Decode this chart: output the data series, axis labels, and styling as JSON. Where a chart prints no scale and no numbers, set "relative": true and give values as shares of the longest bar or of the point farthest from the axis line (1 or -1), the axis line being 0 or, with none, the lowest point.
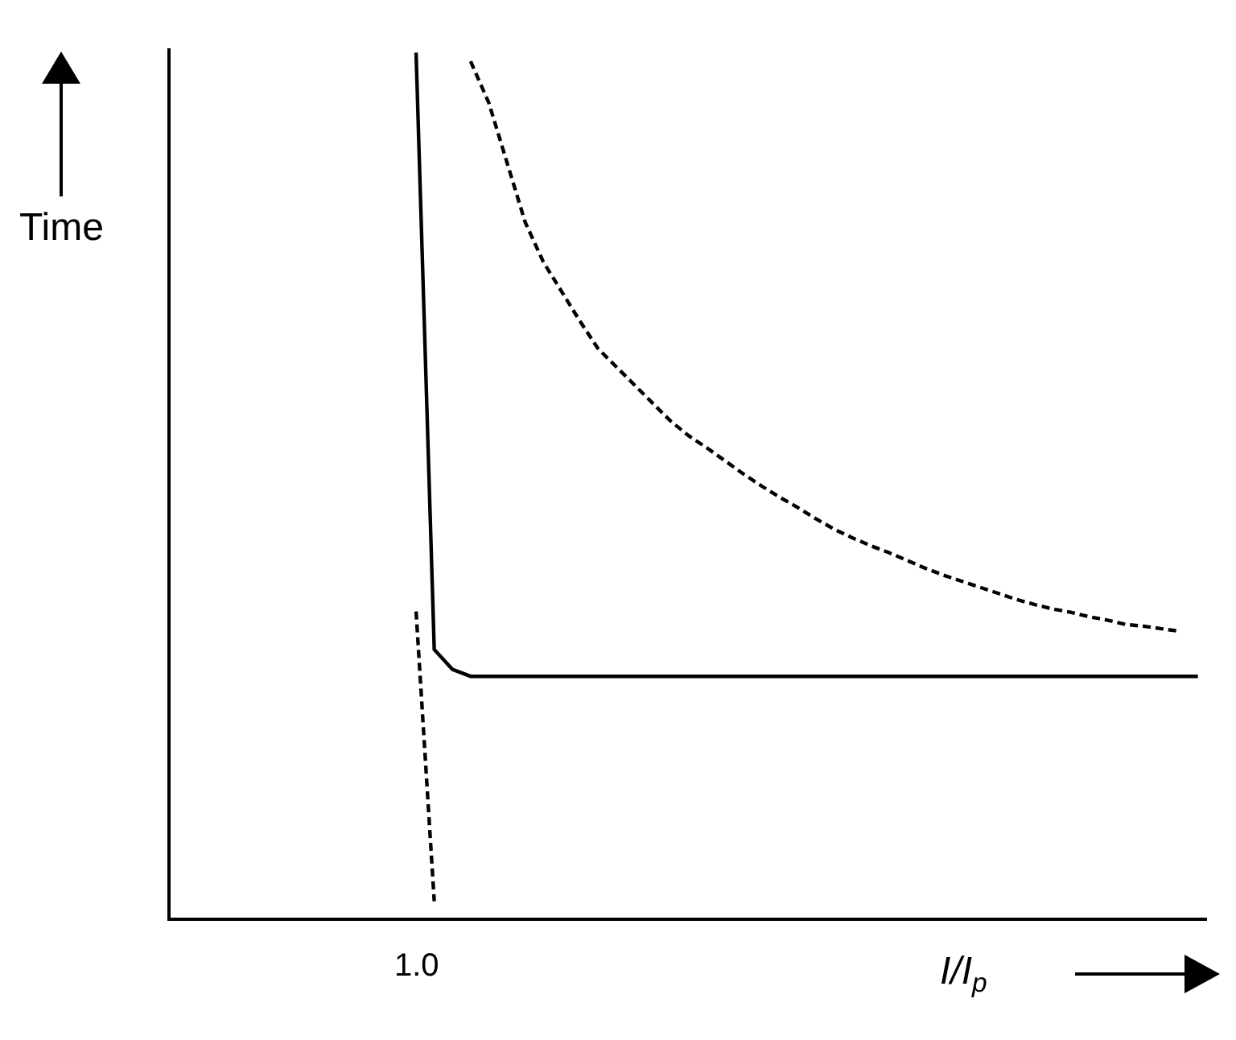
{
  "chart_data": {
    "type": "line",
    "relative": true,
    "xlabel": "I/I$_{p}$",
    "ylabel": "Time",
    "marker": "none",
    "annotations": [
      "1.0"
    ],
    "categories": [
      null,
      null,
      null,
      null,
      null,
      null,
      null,
      null,
      null,
      null,
      null,
      null,
      null,
      null,
      null,
      null,
      null,
      null,
      null,
      null,
      null,
      null,
      null,
      null,
      null,
      null,
      null,
      null,
      null,
      null,
      null,
      null,
      null,
      null,
      null,
      null,
      null,
      null,
      null,
      null,
      null,
      null,
      null,
      null,
      null,
      null,
      null,
      null,
      null,
      null,
      null,
      null,
      null,
      null,
      null,
      null,
      null
    ],
    "series": [
      {
        "color": "#000000",
        "line_style": "solid",
        "values": [
          null,
          null,
          null,
          null,
          null,
          null,
          null,
          null,
          null,
          null,
          null,
          null,
          null,
          1.0,
          0.31,
          0.287,
          0.279,
          0.279,
          0.279,
          0.279,
          0.279,
          0.279,
          0.279,
          0.279,
          0.279,
          0.279,
          0.279,
          0.279,
          0.279,
          0.279,
          0.279,
          0.279,
          0.279,
          0.279,
          0.279,
          0.279,
          0.279,
          0.279,
          0.279,
          0.279,
          0.279,
          0.279,
          0.279,
          0.279,
          0.279,
          0.279,
          0.279,
          0.279,
          0.279,
          0.279,
          0.279,
          0.279,
          0.279,
          0.279,
          0.279,
          0.279,
          0.279
        ]
      },
      {
        "color": "#000000",
        "line_style": "dashed",
        "values": [
          null,
          null,
          null,
          null,
          null,
          null,
          null,
          null,
          null,
          null,
          null,
          null,
          null,
          0.354,
          0.019,
          null,
          null,
          null,
          null,
          null,
          null,
          null,
          null,
          null,
          null,
          null,
          null,
          null,
          null,
          null,
          null,
          null,
          null,
          null,
          null,
          null,
          null,
          null,
          null,
          null,
          null,
          null,
          null,
          null,
          null,
          null,
          null,
          null,
          null,
          null,
          null,
          null,
          null,
          null,
          null,
          null,
          null
        ]
      },
      {
        "color": "#000000",
        "line_style": "dashed",
        "values": [
          null,
          null,
          null,
          null,
          null,
          null,
          null,
          null,
          null,
          null,
          null,
          null,
          null,
          null,
          null,
          null,
          0.99,
          0.942,
          0.873,
          0.804,
          0.758,
          0.724,
          0.69,
          0.658,
          0.637,
          0.616,
          0.595,
          0.574,
          0.557,
          0.543,
          0.528,
          0.513,
          0.499,
          0.486,
          0.474,
          0.461,
          0.449,
          0.439,
          0.43,
          0.422,
          0.413,
          0.404,
          0.396,
          0.389,
          0.382,
          0.375,
          0.368,
          0.362,
          0.357,
          0.353,
          0.348,
          0.344,
          0.339,
          0.337,
          0.334,
          0.331,
          null
        ]
      }
    ]
  }
}
